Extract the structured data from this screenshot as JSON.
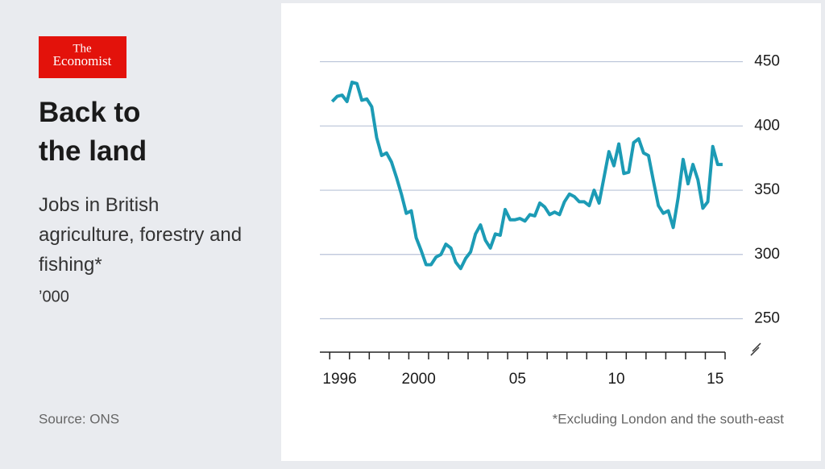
{
  "brand": {
    "line1": "The",
    "line2": "Economist"
  },
  "chart_data": {
    "type": "line",
    "title": "Back to the land",
    "subtitle": "Jobs in British agriculture, forestry and fishing*",
    "unit": "’000",
    "source": "Source: ONS",
    "footnote": "*Excluding London and the south-east",
    "x": [
      1996.125,
      1996.375,
      1996.625,
      1996.875,
      1997.125,
      1997.375,
      1997.625,
      1997.875,
      1998.125,
      1998.375,
      1998.625,
      1998.875,
      1999.125,
      1999.375,
      1999.625,
      1999.875,
      2000.125,
      2000.375,
      2000.625,
      2000.875,
      2001.125,
      2001.375,
      2001.625,
      2001.875,
      2002.125,
      2002.375,
      2002.625,
      2002.875,
      2003.125,
      2003.375,
      2003.625,
      2003.875,
      2004.125,
      2004.375,
      2004.625,
      2004.875,
      2005.125,
      2005.375,
      2005.625,
      2005.875,
      2006.125,
      2006.375,
      2006.625,
      2006.875,
      2007.125,
      2007.375,
      2007.625,
      2007.875,
      2008.125,
      2008.375,
      2008.625,
      2008.875,
      2009.125,
      2009.375,
      2009.625,
      2009.875,
      2010.125,
      2010.375,
      2010.625,
      2010.875,
      2011.125,
      2011.375,
      2011.625,
      2011.875,
      2012.125,
      2012.375,
      2012.625,
      2012.875,
      2013.125,
      2013.375,
      2013.625,
      2013.875,
      2014.125,
      2014.375,
      2014.625,
      2014.875,
      2015.125,
      2015.375,
      2015.625,
      2015.875
    ],
    "series": [
      {
        "color": "#1c9bb5",
        "values": [
          419,
          423,
          424,
          419,
          434,
          433,
          420,
          421,
          415,
          391,
          377,
          379,
          372,
          360,
          347,
          332,
          334,
          313,
          303,
          292,
          292,
          298,
          300,
          308,
          305,
          294,
          289,
          297,
          302,
          316,
          323,
          311,
          305,
          316,
          315,
          335,
          327,
          327,
          328,
          326,
          331,
          330,
          340,
          337,
          331,
          333,
          331,
          341,
          347,
          345,
          341,
          341,
          338,
          350,
          340,
          360,
          380,
          369,
          386,
          363,
          364,
          387,
          390,
          379,
          377,
          357,
          338,
          332,
          334,
          321,
          344,
          374,
          355,
          370,
          358,
          336,
          341,
          384,
          370,
          370
        ]
      }
    ],
    "xlim": [
      1995.5,
      2016
    ],
    "xtick_marks": [
      1996,
      1997,
      1998,
      1999,
      2000,
      2001,
      2002,
      2003,
      2004,
      2005,
      2006,
      2007,
      2008,
      2009,
      2010,
      2011,
      2012,
      2013,
      2014,
      2015,
      2016
    ],
    "xticks": [
      {
        "value": 1996.5,
        "label": "1996"
      },
      {
        "value": 2000.5,
        "label": "2000"
      },
      {
        "value": 2005.5,
        "label": "05"
      },
      {
        "value": 2010.5,
        "label": "10"
      },
      {
        "value": 2015.5,
        "label": "15"
      }
    ],
    "ylim": [
      224,
      460
    ],
    "yticks": [
      250,
      300,
      350,
      400,
      450
    ],
    "grid": true
  }
}
